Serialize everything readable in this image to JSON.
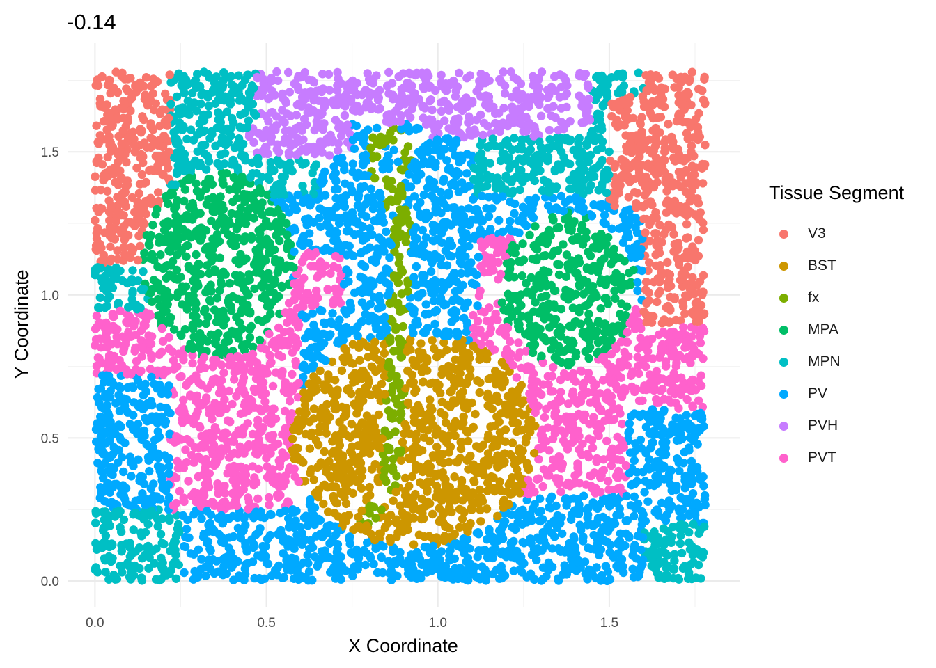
{
  "chart_data": {
    "type": "scatter",
    "title": "-0.14",
    "xlabel": "X Coordinate",
    "ylabel": "Y Coordinate",
    "xlim": [
      -0.08,
      1.88
    ],
    "ylim": [
      -0.09,
      1.88
    ],
    "x_ticks": [
      "0.0",
      "0.5",
      "1.0",
      "1.5"
    ],
    "x_tick_values": [
      0.0,
      0.5,
      1.0,
      1.5
    ],
    "y_ticks": [
      "0.0",
      "0.5",
      "1.0",
      "1.5"
    ],
    "y_tick_values": [
      0.0,
      0.5,
      1.0,
      1.5
    ],
    "grid": true,
    "legend_title": "Tissue Segment",
    "legend_position": "right",
    "series": [
      {
        "name": "V3",
        "color": "#F8766D"
      },
      {
        "name": "BST",
        "color": "#CD9600"
      },
      {
        "name": "fx",
        "color": "#7CAE00"
      },
      {
        "name": "MPA",
        "color": "#00BE67"
      },
      {
        "name": "MPN",
        "color": "#00BFC4"
      },
      {
        "name": "PV",
        "color": "#00A9FF"
      },
      {
        "name": "PVH",
        "color": "#C77CFF"
      },
      {
        "name": "PVT",
        "color": "#FF61CC"
      }
    ]
  }
}
